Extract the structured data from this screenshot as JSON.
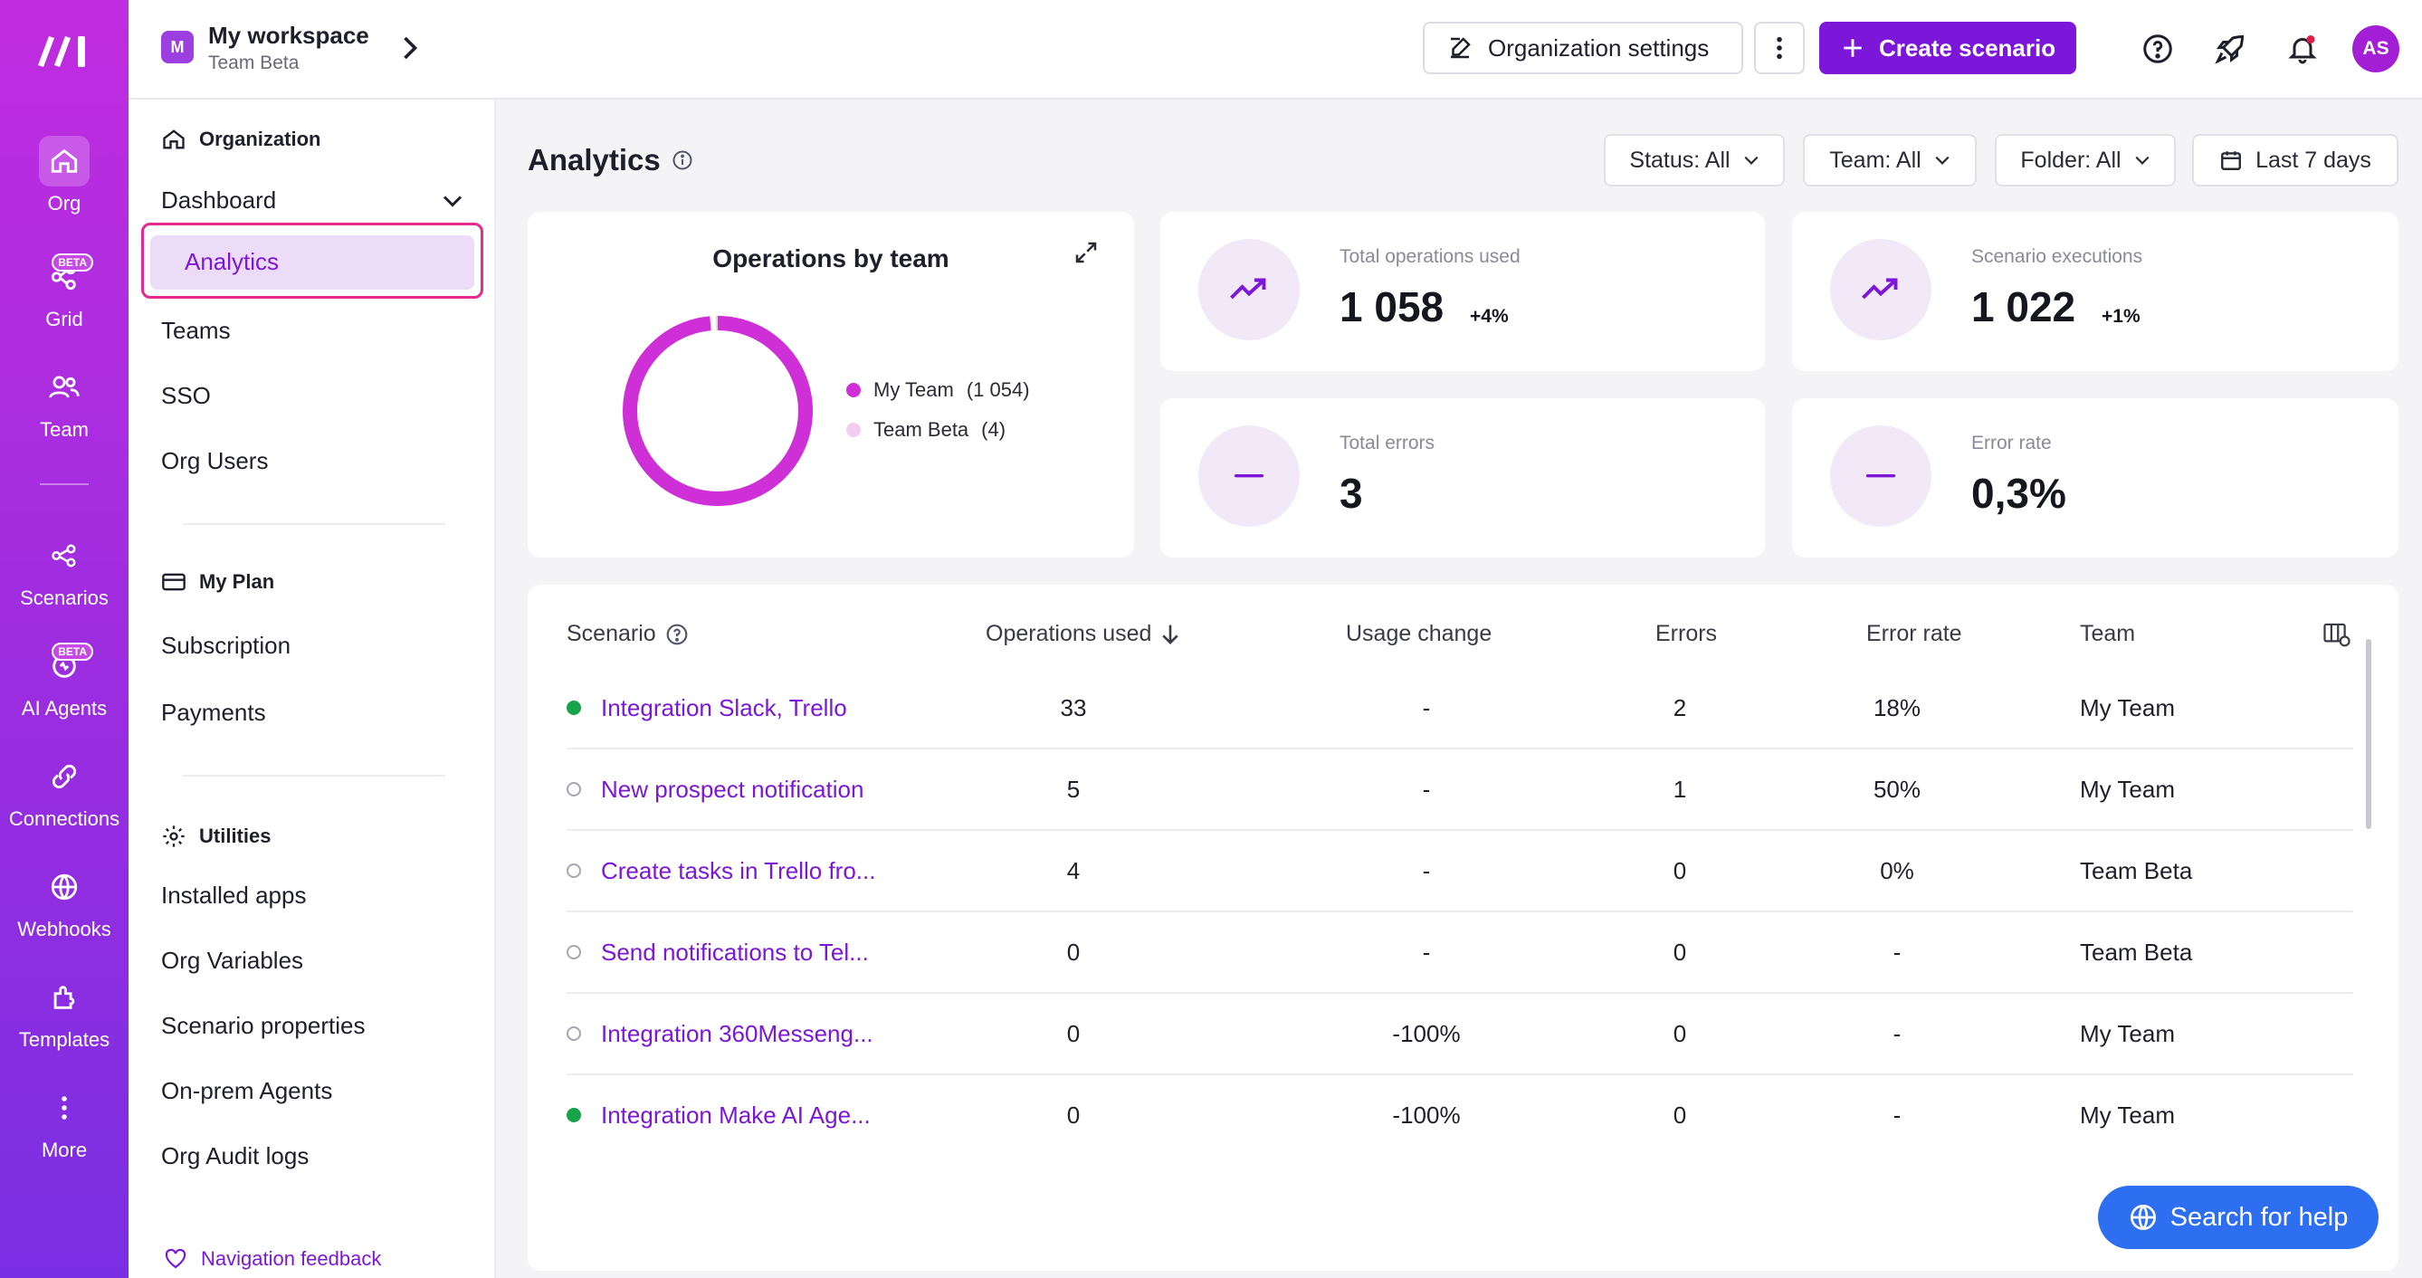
{
  "rail": {
    "items": [
      {
        "label": "Org",
        "icon": "home-icon"
      },
      {
        "label": "Grid",
        "icon": "grid-icon",
        "badge": "BETA"
      },
      {
        "label": "Team",
        "icon": "team-icon"
      },
      {
        "label": "Scenarios",
        "icon": "scenarios-icon"
      },
      {
        "label": "AI Agents",
        "icon": "ai-agents-icon",
        "badge": "BETA"
      },
      {
        "label": "Connections",
        "icon": "connections-icon"
      },
      {
        "label": "Webhooks",
        "icon": "webhooks-icon"
      },
      {
        "label": "Templates",
        "icon": "templates-icon"
      },
      {
        "label": "More",
        "icon": "more-icon"
      }
    ]
  },
  "header": {
    "workspace_initial": "M",
    "workspace_title": "My workspace",
    "workspace_subtitle": "Team Beta",
    "org_settings_label": "Organization settings",
    "create_label": "Create scenario",
    "user_initials": "AS"
  },
  "sidenav": {
    "org_heading": "Organization",
    "dashboard": "Dashboard",
    "analytics": "Analytics",
    "teams": "Teams",
    "sso": "SSO",
    "org_users": "Org Users",
    "plan_heading": "My Plan",
    "subscription": "Subscription",
    "payments": "Payments",
    "utilities_heading": "Utilities",
    "installed_apps": "Installed apps",
    "org_variables": "Org Variables",
    "scenario_properties": "Scenario properties",
    "onprem_agents": "On-prem Agents",
    "audit_logs": "Org Audit logs",
    "feedback": "Navigation feedback"
  },
  "main": {
    "title": "Analytics",
    "filters": {
      "status": "Status: All",
      "team": "Team: All",
      "folder": "Folder: All",
      "range": "Last 7 days"
    },
    "donut": {
      "title": "Operations by team",
      "legend": [
        {
          "label": "My Team",
          "count": "(1 054)",
          "value": 1054,
          "color": "#cf2fd6"
        },
        {
          "label": "Team Beta",
          "count": "(4)",
          "value": 4,
          "color": "#f3cdf0"
        }
      ]
    },
    "stats": {
      "total_ops_label": "Total operations used",
      "total_ops_value": "1 058",
      "total_ops_change": "+4%",
      "executions_label": "Scenario executions",
      "executions_value": "1 022",
      "executions_change": "+1%",
      "errors_label": "Total errors",
      "errors_value": "3",
      "error_rate_label": "Error rate",
      "error_rate_value": "0,3%"
    },
    "table": {
      "headers": {
        "scenario": "Scenario",
        "ops": "Operations used",
        "usage": "Usage change",
        "errors": "Errors",
        "rate": "Error rate",
        "team": "Team"
      },
      "rows": [
        {
          "active": true,
          "name": "Integration Slack, Trello",
          "ops": "33",
          "usage": "-",
          "errors": "2",
          "rate": "18%",
          "team": "My Team"
        },
        {
          "active": false,
          "name": "New prospect notification",
          "ops": "5",
          "usage": "-",
          "errors": "1",
          "rate": "50%",
          "team": "My Team"
        },
        {
          "active": false,
          "name": "Create tasks in Trello fro...",
          "ops": "4",
          "usage": "-",
          "errors": "0",
          "rate": "0%",
          "team": "Team Beta"
        },
        {
          "active": false,
          "name": "Send notifications to Tel...",
          "ops": "0",
          "usage": "-",
          "errors": "0",
          "rate": "-",
          "team": "Team Beta"
        },
        {
          "active": false,
          "name": "Integration 360Messeng...",
          "ops": "0",
          "usage": "-100%",
          "errors": "0",
          "rate": "-",
          "team": "My Team"
        },
        {
          "active": true,
          "name": "Integration Make AI Age...",
          "ops": "0",
          "usage": "-100%",
          "errors": "0",
          "rate": "-",
          "team": "My Team"
        }
      ]
    },
    "help_label": "Search for help"
  }
}
